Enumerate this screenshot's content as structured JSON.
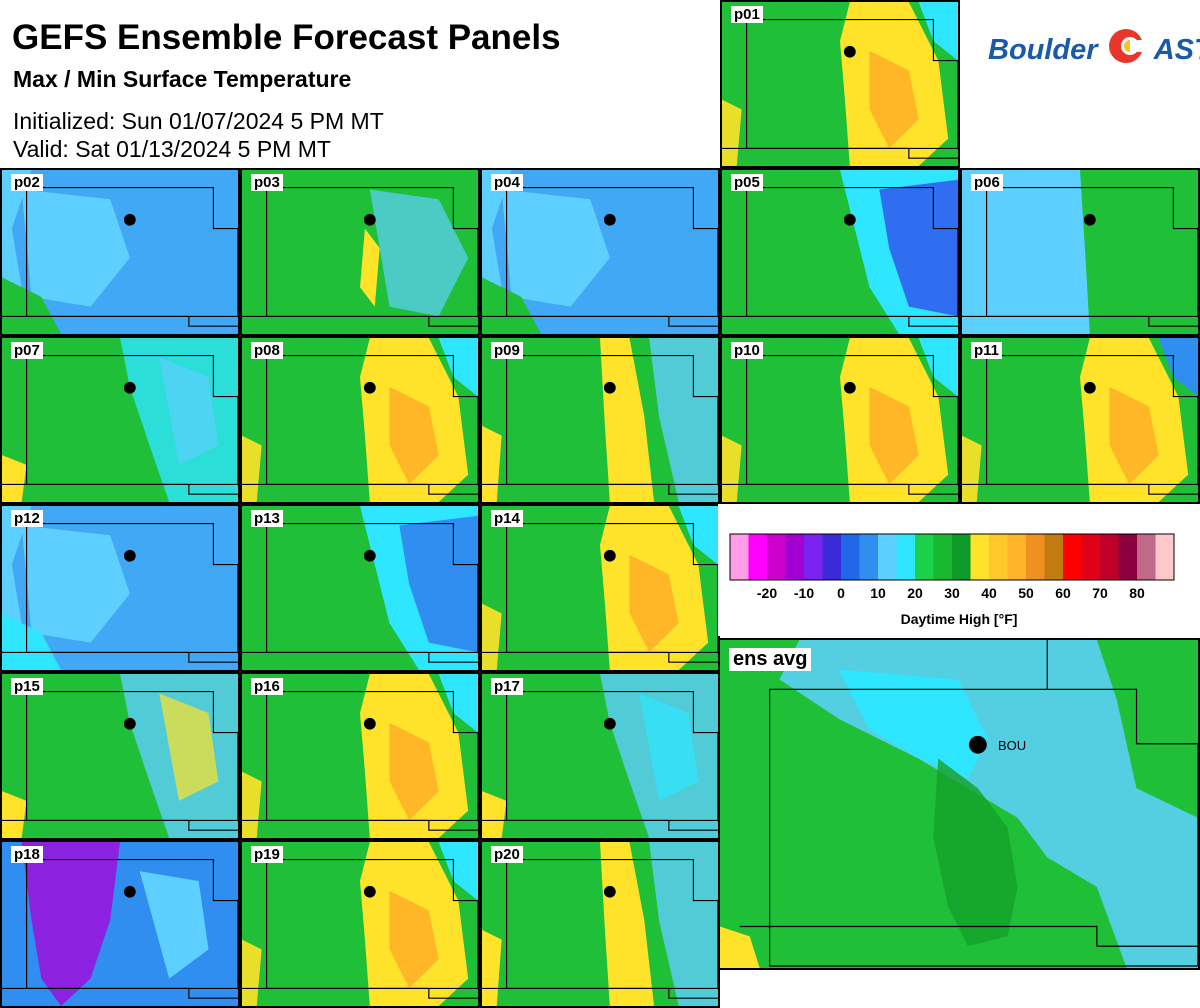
{
  "header": {
    "title": "GEFS Ensemble Forecast Panels",
    "subtitle": "Max / Min Surface Temperature",
    "initialized": "Initialized: Sun 01/07/2024 5 PM MT",
    "valid": "Valid: Sat 01/13/2024 5 PM MT"
  },
  "logo": {
    "text_left": "Boulder",
    "text_right": "AST"
  },
  "panels": [
    {
      "label": "p01",
      "base": "#1fbf38",
      "warm": "#ffe22a",
      "hot": "#ffb728",
      "cold": "#2ee6ff",
      "mode": "warm"
    },
    {
      "label": "p02",
      "base": "#5ed0ff",
      "warm": "#1fbf38",
      "cold": "#2f8ef0",
      "mode": "cold"
    },
    {
      "label": "p03",
      "base": "#1fbf38",
      "warm": "#ffe22a",
      "cold": "#5ed0ff",
      "mode": "mixed"
    },
    {
      "label": "p04",
      "base": "#5ed0ff",
      "warm": "#1fbf38",
      "cold": "#2f8ef0",
      "mode": "cold"
    },
    {
      "label": "p05",
      "base": "#1fbf38",
      "warm": "#2ee6ff",
      "cold": "#2f6ef0",
      "mode": "coldeast"
    },
    {
      "label": "p06",
      "base": "#5ed0ff",
      "warm": "#1fbf38",
      "cold": "#2ee6ff",
      "mode": "westcold"
    },
    {
      "label": "p07",
      "base": "#1fbf38",
      "warm": "#5ed0ff",
      "cold": "#2ee6ff",
      "mode": "mixed2"
    },
    {
      "label": "p08",
      "base": "#1fbf38",
      "warm": "#ffe22a",
      "hot": "#ffb728",
      "cold": "#2ee6ff",
      "mode": "warm"
    },
    {
      "label": "p09",
      "base": "#1fbf38",
      "warm": "#ffe22a",
      "hot": "#ffb728",
      "cold": "#5ed0ff",
      "mode": "warmstrip"
    },
    {
      "label": "p10",
      "base": "#1fbf38",
      "warm": "#ffe22a",
      "hot": "#ffb728",
      "cold": "#2ee6ff",
      "mode": "warm"
    },
    {
      "label": "p11",
      "base": "#1fbf38",
      "warm": "#ffe22a",
      "hot": "#ffb728",
      "cold": "#2f8ef0",
      "mode": "warm"
    },
    {
      "label": "p12",
      "base": "#5ed0ff",
      "warm": "#2ee6ff",
      "cold": "#2f8ef0",
      "mode": "cold"
    },
    {
      "label": "p13",
      "base": "#1fbf38",
      "warm": "#2ee6ff",
      "cold": "#2f8ef0",
      "mode": "coldeast"
    },
    {
      "label": "p14",
      "base": "#1fbf38",
      "warm": "#ffe22a",
      "hot": "#ffb728",
      "cold": "#2ee6ff",
      "mode": "warm"
    },
    {
      "label": "p15",
      "base": "#1fbf38",
      "warm": "#ffe22a",
      "cold": "#5ed0ff",
      "mode": "mixed2"
    },
    {
      "label": "p16",
      "base": "#1fbf38",
      "warm": "#ffe22a",
      "hot": "#ffb728",
      "cold": "#2ee6ff",
      "mode": "warm"
    },
    {
      "label": "p17",
      "base": "#1fbf38",
      "warm": "#2ee6ff",
      "cold": "#5ed0ff",
      "mode": "mixed2"
    },
    {
      "label": "p18",
      "base": "#2f8ef0",
      "warm": "#5ed0ff",
      "cold": "#8a22e0",
      "mode": "purple"
    },
    {
      "label": "p19",
      "base": "#1fbf38",
      "warm": "#ffe22a",
      "hot": "#ffb728",
      "cold": "#2ee6ff",
      "mode": "warm"
    },
    {
      "label": "p20",
      "base": "#1fbf38",
      "warm": "#ffe22a",
      "cold": "#5ed0ff",
      "mode": "warmstrip"
    }
  ],
  "ensemble": {
    "label": "ens avg",
    "station": "BOU"
  },
  "legend": {
    "title": "Daytime High [°F]",
    "colors": [
      "#ff9ee6",
      "#ff00ff",
      "#cc00cc",
      "#a000d0",
      "#7a22f0",
      "#3a2ad8",
      "#2068e8",
      "#2f8ef0",
      "#5ed0ff",
      "#2ee6ff",
      "#1bd04a",
      "#18b830",
      "#0e9a28",
      "#ffe22a",
      "#ffc82a",
      "#ffb428",
      "#f09020",
      "#c07c10",
      "#ff0000",
      "#e00018",
      "#c0002a",
      "#8c0040",
      "#c06a8a",
      "#ffc8c8"
    ],
    "ticks": [
      "-20",
      "-10",
      "0",
      "10",
      "20",
      "30",
      "40",
      "50",
      "60",
      "70",
      "80"
    ],
    "tick_index": [
      2,
      4,
      6,
      8,
      10,
      12,
      14,
      16,
      18,
      20,
      22
    ]
  }
}
